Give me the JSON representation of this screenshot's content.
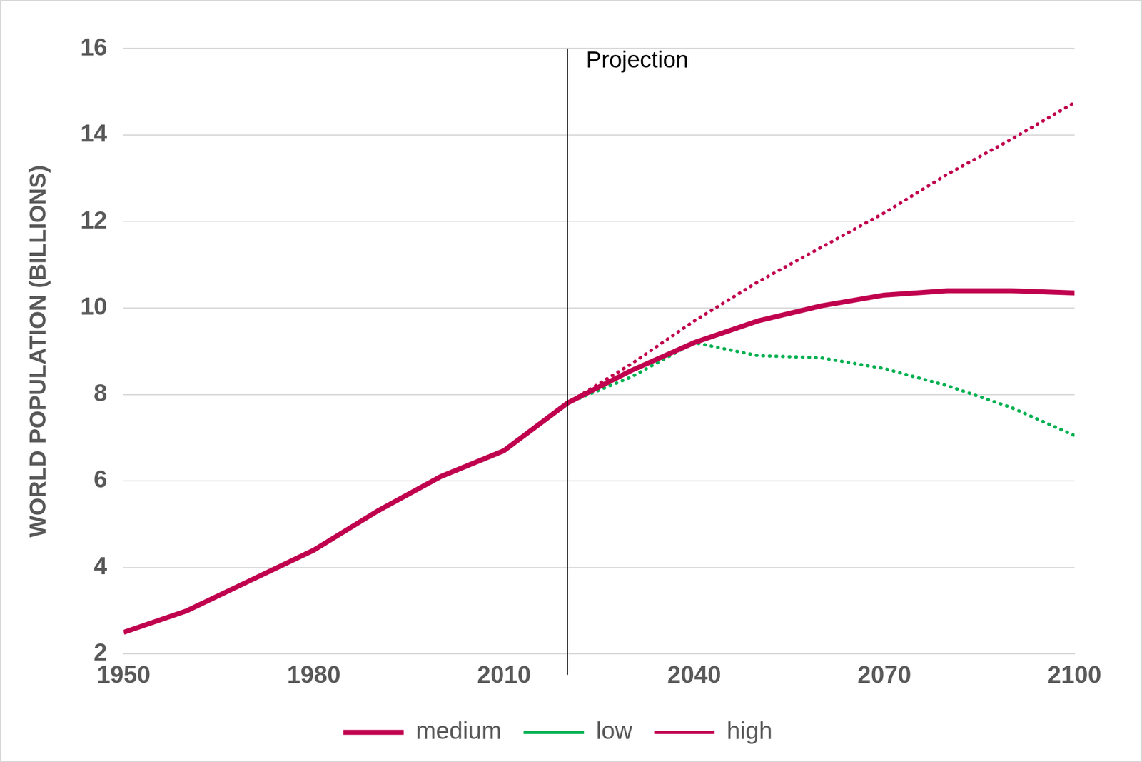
{
  "chart_data": {
    "type": "line",
    "y_label": "WORLD POPULATION (BILLIONS)",
    "x": [
      1950,
      1960,
      1970,
      1980,
      1990,
      2000,
      2010,
      2020,
      2030,
      2040,
      2050,
      2060,
      2070,
      2080,
      2090,
      2100
    ],
    "series": [
      {
        "name": "low",
        "color": "#00b050",
        "line_style": "dotted",
        "values": [
          null,
          null,
          null,
          null,
          null,
          null,
          null,
          7.8,
          8.4,
          9.2,
          8.9,
          8.85,
          8.6,
          8.2,
          7.7,
          7.05
        ]
      },
      {
        "name": "medium",
        "color": "#c0004e",
        "line_style": "solid",
        "values": [
          2.5,
          3.0,
          3.7,
          4.4,
          5.3,
          6.1,
          6.7,
          7.8,
          8.55,
          9.2,
          9.7,
          10.05,
          10.3,
          10.4,
          10.4,
          10.35
        ]
      },
      {
        "name": "high",
        "color": "#c0004e",
        "line_style": "dotted",
        "values": [
          null,
          null,
          null,
          null,
          null,
          null,
          null,
          7.8,
          8.7,
          9.7,
          10.6,
          11.4,
          12.2,
          13.1,
          13.9,
          14.75
        ]
      }
    ],
    "xlim": [
      1950,
      2100
    ],
    "xticks": [
      1950,
      1980,
      2010,
      2040,
      2070,
      2100
    ],
    "ylim": [
      2,
      16
    ],
    "yticks": [
      2,
      4,
      6,
      8,
      10,
      12,
      14,
      16
    ],
    "grid": true,
    "legend": "bottom",
    "annotations": [
      {
        "text": "Projection",
        "x": 2020
      }
    ]
  }
}
